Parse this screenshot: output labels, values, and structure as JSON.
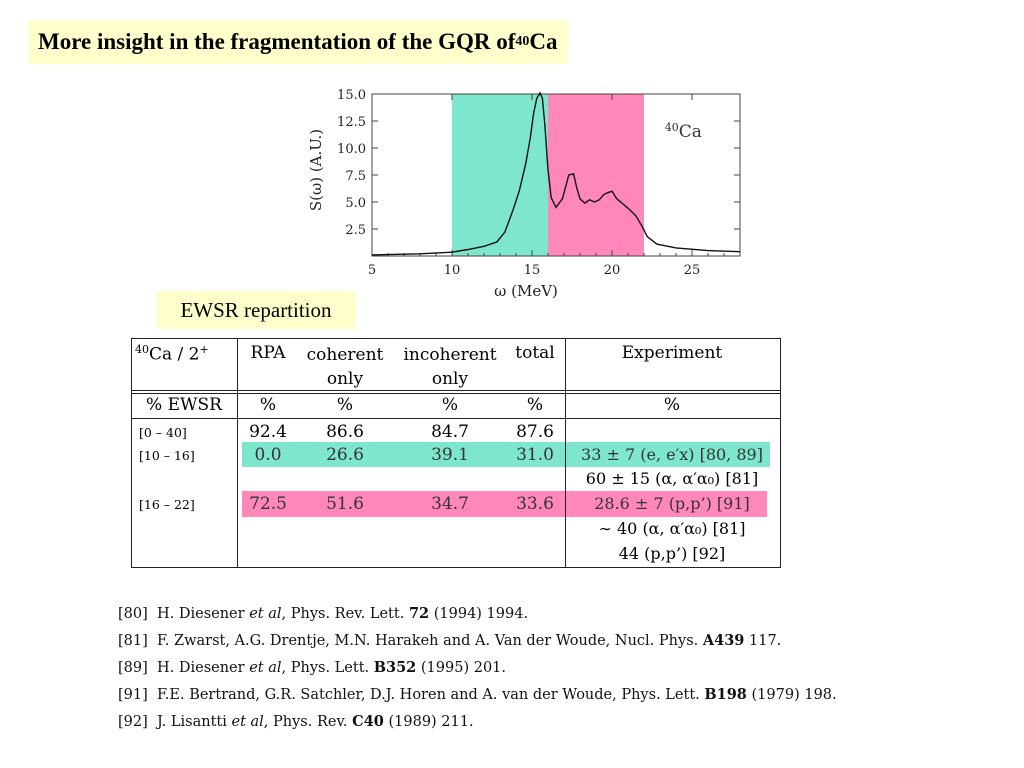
{
  "title": {
    "text": "More insight in the fragmentation of the GQR of ",
    "sup": "40",
    "tail": "Ca"
  },
  "ewsr_label": "EWSR repartition",
  "chart_data": {
    "type": "line",
    "xlabel": "ω (MeV)",
    "ylabel": "S(ω) (A.U.)",
    "xlim": [
      5,
      28
    ],
    "ylim": [
      0,
      15
    ],
    "xticks": [
      "5",
      "10",
      "15",
      "20",
      "25"
    ],
    "yticks": [
      "2.5",
      "5.0",
      "7.5",
      "10.0",
      "12.5",
      "15.0"
    ],
    "annotation": {
      "sup": "40",
      "text": "Ca"
    },
    "bands": [
      {
        "from": 10,
        "to": 16,
        "color": "#7ee6cc"
      },
      {
        "from": 16,
        "to": 22,
        "color": "#ff87ba"
      }
    ],
    "series": [
      {
        "x": [
          5,
          8,
          10,
          11,
          12,
          12.8,
          13.3,
          13.8,
          14.2,
          14.6,
          14.9,
          15.1,
          15.3,
          15.5,
          15.65,
          15.8,
          16.0,
          16.2,
          16.5,
          16.9,
          17.3,
          17.6,
          17.8,
          18.0,
          18.3,
          18.6,
          18.9,
          19.2,
          19.5,
          19.8,
          20.0,
          20.3,
          20.7,
          21.1,
          21.5,
          21.9,
          22.2,
          22.8,
          24,
          26,
          28
        ],
        "y": [
          0.1,
          0.2,
          0.35,
          0.6,
          0.9,
          1.3,
          2.2,
          4.2,
          6.0,
          8.5,
          11.0,
          13.2,
          14.6,
          15.1,
          14.6,
          12.2,
          8.0,
          5.4,
          4.5,
          5.3,
          7.5,
          7.6,
          6.3,
          5.3,
          4.9,
          5.2,
          5.0,
          5.2,
          5.7,
          5.9,
          6.0,
          5.3,
          4.8,
          4.3,
          3.7,
          2.7,
          1.8,
          1.1,
          0.75,
          0.5,
          0.4
        ]
      }
    ]
  },
  "table": {
    "header": {
      "c0": "⁴⁰Ca / 2⁺",
      "c1": "RPA",
      "c2": "coherent only",
      "c3": "incoherent only",
      "c4": "total",
      "c5": "Experiment"
    },
    "units": {
      "c0": "% EWSR",
      "c1": "%",
      "c2": "%",
      "c3": "%",
      "c4": "%",
      "c5": "%"
    },
    "rows": [
      {
        "label": "[0 – 40]",
        "rpa": "92.4",
        "coh": "86.6",
        "inc": "84.7",
        "tot": "87.6",
        "exp": ""
      },
      {
        "label": "[10 – 16]",
        "rpa": "0.0",
        "coh": "26.6",
        "inc": "39.1",
        "tot": "31.0",
        "exp": "33 ± 7 (e, e′x) [80, 89]"
      },
      {
        "label": "",
        "rpa": "",
        "coh": "",
        "inc": "",
        "tot": "",
        "exp": "60 ± 15 (α, α′α₀) [81]"
      },
      {
        "label": "[16 – 22]",
        "rpa": "72.5",
        "coh": "51.6",
        "inc": "34.7",
        "tot": "33.6",
        "exp": "28.6 ± 7 (p,p’)   [91]"
      },
      {
        "label": "",
        "rpa": "",
        "coh": "",
        "inc": "",
        "tot": "",
        "exp": "∼ 40 (α, α′α₀) [81]"
      },
      {
        "label": "",
        "rpa": "",
        "coh": "",
        "inc": "",
        "tot": "",
        "exp": "44 (p,p’) [92]"
      }
    ],
    "highlight_colors": {
      "green": "#7ee6cc",
      "pink": "#ff87ba"
    }
  },
  "references": [
    {
      "num": "[80]",
      "a": "H. Diesener ",
      "i": "et al",
      "b": ", Phys. Rev. Lett. ",
      "bold": "72",
      "c": " (1994) 1994."
    },
    {
      "num": "[81]",
      "a": "F. Zwarst, A.G. Drentje, M.N. Harakeh and A. Van der Woude, Nucl. Phys. ",
      "i": "",
      "b": "",
      "bold": "A439",
      "c": " 117."
    },
    {
      "num": "[89]",
      "a": "H. Diesener ",
      "i": "et al",
      "b": ", Phys. Lett. ",
      "bold": "B352",
      "c": " (1995) 201."
    },
    {
      "num": "[91]",
      "a": "F.E. Bertrand, G.R. Satchler, D.J. Horen and A. van der Woude, Phys. Lett. ",
      "i": "",
      "b": "",
      "bold": "B198",
      "c": " (1979) 198."
    },
    {
      "num": "[92]",
      "a": "J. Lisantti ",
      "i": "et al",
      "b": ", Phys. Rev. ",
      "bold": "C40",
      "c": " (1989) 211."
    }
  ]
}
